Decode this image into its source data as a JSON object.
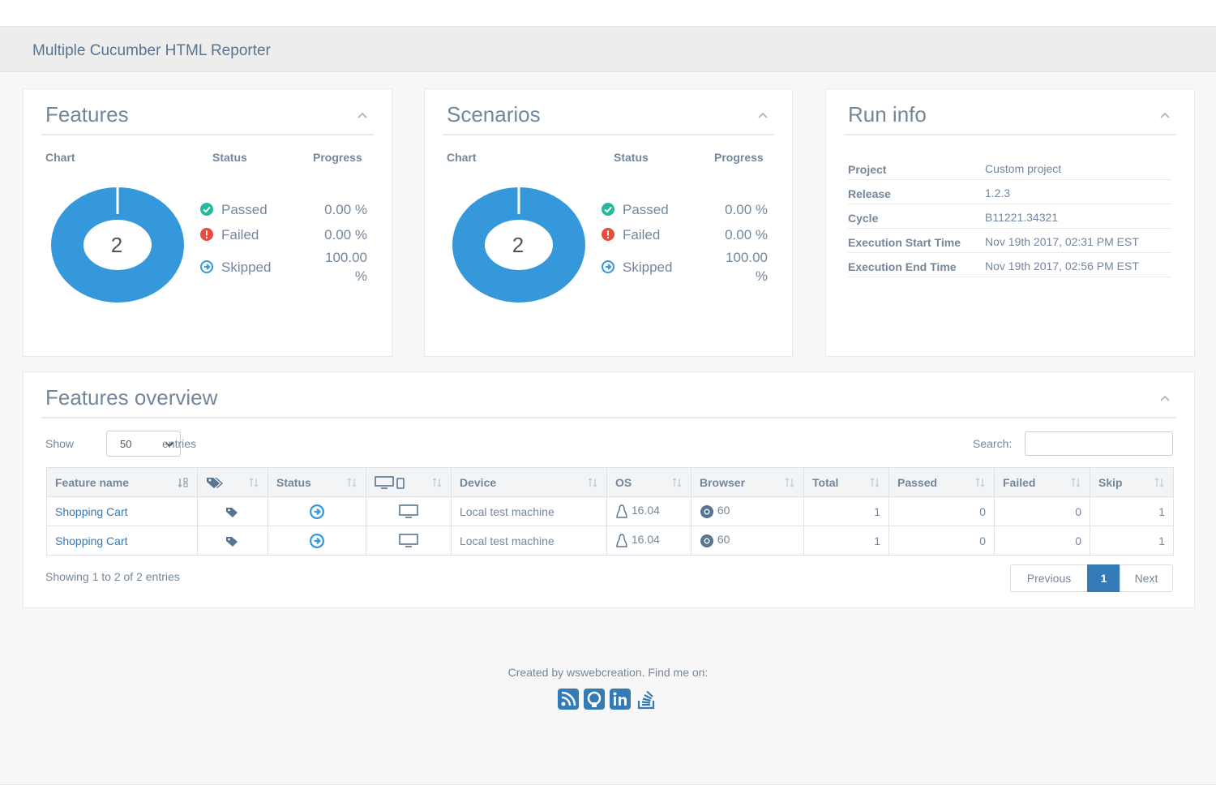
{
  "navbar": {
    "title": "Multiple Cucumber HTML Reporter"
  },
  "features_panel": {
    "title": "Features",
    "headers": {
      "chart": "Chart",
      "status": "Status",
      "progress": "Progress"
    },
    "total": "2",
    "stats": [
      {
        "label": "Passed",
        "value": "0.00 %",
        "icon": "check-circle-icon",
        "color": "#26b99a"
      },
      {
        "label": "Failed",
        "value": "0.00 %",
        "icon": "exclamation-circle-icon",
        "color": "#e74c3c"
      },
      {
        "label": "Skipped",
        "value_line1": "100.00",
        "value_line2": "%",
        "icon": "arrow-circle-right-icon",
        "color": "#3498db"
      }
    ]
  },
  "scenarios_panel": {
    "title": "Scenarios",
    "headers": {
      "chart": "Chart",
      "status": "Status",
      "progress": "Progress"
    },
    "total": "2",
    "stats": [
      {
        "label": "Passed",
        "value": "0.00 %"
      },
      {
        "label": "Failed",
        "value": "0.00 %"
      },
      {
        "label": "Skipped",
        "value_line1": "100.00",
        "value_line2": "%"
      }
    ]
  },
  "run_info": {
    "title": "Run info",
    "rows": [
      {
        "key": "Project",
        "value": "Custom project"
      },
      {
        "key": "Release",
        "value": "1.2.3"
      },
      {
        "key": "Cycle",
        "value": "B11221.34321"
      },
      {
        "key": "Execution Start Time",
        "value": "Nov 19th 2017, 02:31 PM EST"
      },
      {
        "key": "Execution End Time",
        "value": "Nov 19th 2017, 02:56 PM EST"
      }
    ]
  },
  "overview": {
    "title": "Features overview",
    "show_label": "Show",
    "entries_value": "50",
    "entries_label": "entries",
    "search_label": "Search:",
    "columns": {
      "feature": "Feature name",
      "status": "Status",
      "device": "Device",
      "os": "OS",
      "browser": "Browser",
      "total": "Total",
      "passed": "Passed",
      "failed": "Failed",
      "skip": "Skip"
    },
    "rows": [
      {
        "feature": "Shopping Cart",
        "device": "Local test machine",
        "os": "16.04",
        "browser": "60",
        "total": "1",
        "passed": "0",
        "failed": "0",
        "skip": "1"
      },
      {
        "feature": "Shopping Cart",
        "device": "Local test machine",
        "os": "16.04",
        "browser": "60",
        "total": "1",
        "passed": "0",
        "failed": "0",
        "skip": "1"
      }
    ],
    "info": "Showing 1 to 2 of 2 entries",
    "pagination": {
      "previous": "Previous",
      "current": "1",
      "next": "Next"
    }
  },
  "footer": {
    "text": "Created by wswebcreation. Find me on:"
  },
  "colors": {
    "accent": "#337ab7",
    "donut": "#3498db",
    "passed": "#26b99a",
    "failed": "#e74c3c"
  }
}
